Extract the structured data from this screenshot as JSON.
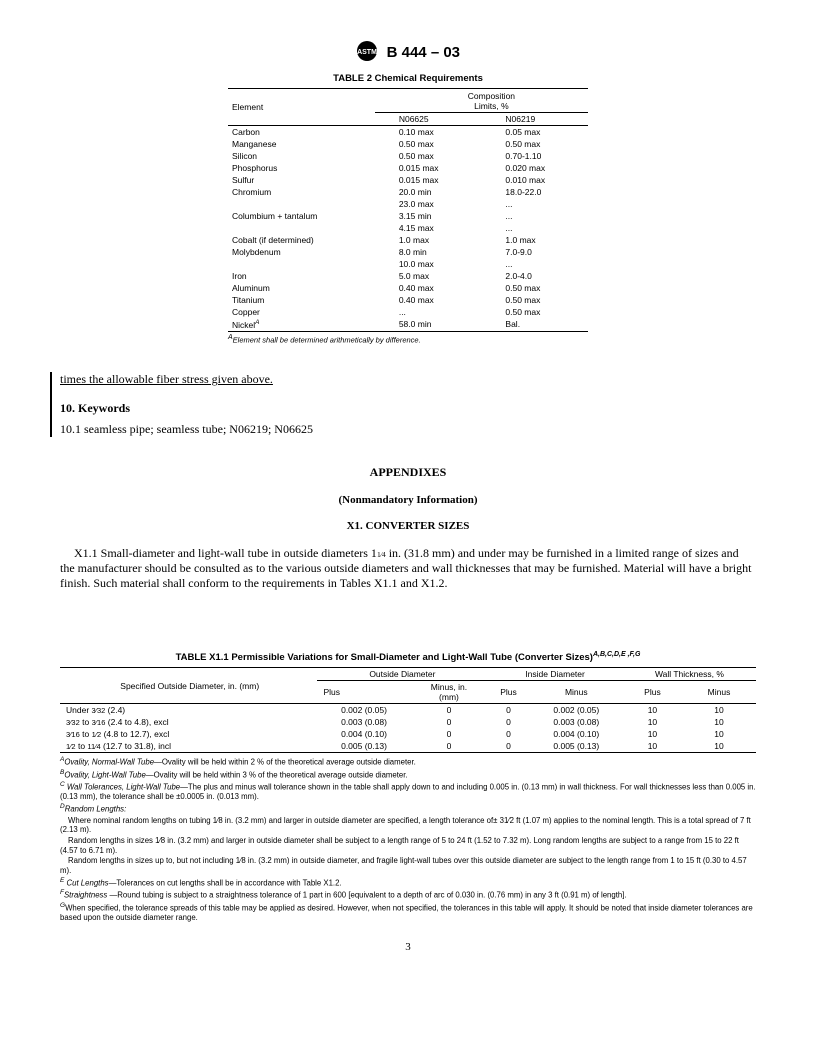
{
  "doc": {
    "designation": "B 444 – 03"
  },
  "table2": {
    "title": "TABLE 2  Chemical Requirements",
    "col_element": "Element",
    "col_comp": "Composition\nLimits, %",
    "sub1": "N06625",
    "sub2": "N06219",
    "rows": [
      {
        "el": "Carbon",
        "a": "0.10 max",
        "b": "0.05 max"
      },
      {
        "el": "Manganese",
        "a": "0.50 max",
        "b": "0.50 max"
      },
      {
        "el": "Silicon",
        "a": "0.50 max",
        "b": "0.70-1.10"
      },
      {
        "el": "Phosphorus",
        "a": "0.015 max",
        "b": "0.020 max"
      },
      {
        "el": "Sulfur",
        "a": "0.015 max",
        "b": "0.010 max"
      },
      {
        "el": "Chromium",
        "a": "20.0 min",
        "b": "18.0-22.0"
      },
      {
        "el": "",
        "a": "23.0 max",
        "b": "..."
      },
      {
        "el": "Columbium + tantalum",
        "a": "3.15 min",
        "b": "..."
      },
      {
        "el": "",
        "a": "4.15 max",
        "b": "..."
      },
      {
        "el": "Cobalt (if determined)",
        "a": "1.0 max",
        "b": "1.0 max"
      },
      {
        "el": "Molybdenum",
        "a": "8.0 min",
        "b": "7.0-9.0"
      },
      {
        "el": "",
        "a": "10.0 max",
        "b": "..."
      },
      {
        "el": "Iron",
        "a": "5.0 max",
        "b": "2.0-4.0"
      },
      {
        "el": "Aluminum",
        "a": "0.40 max",
        "b": "0.50 max"
      },
      {
        "el": "Titanium",
        "a": "0.40 max",
        "b": "0.50 max"
      },
      {
        "el": "Copper",
        "a": "...",
        "b": "0.50 max"
      },
      {
        "el": "Nickel",
        "a": "58.0 min",
        "b": "Bal."
      }
    ],
    "nickel_sup": "A",
    "footnote": "Element shall be determined arithmetically by difference.",
    "footnote_sup": "A"
  },
  "body": {
    "line1": "times the allowable fiber stress given above.",
    "kw_hdr": "10. Keywords",
    "kw_text": "10.1 seamless pipe; seamless tube; N06219; N06625"
  },
  "appendix": {
    "title": "APPENDIXES",
    "sub": "(Nonmandatory Information)",
    "x1_title": "X1. CONVERTER SIZES",
    "x1_para_a": "X1.1   Small-diameter and light-wall tube in outside diameters 1",
    "x1_para_b": " in. (31.8 mm) and under may be furnished in a limited range of sizes and the manufacturer should be consulted as to the various outside diameters and wall thicknesses that may be furnished. Material will have a bright finish. Such material shall conform to the requirements in Tables X1.1 and X1.2."
  },
  "tablex1": {
    "title_a": "TABLE X1.1  Permissible Variations for Small-Diameter and Light-Wall Tube (Converter Sizes)",
    "title_sup": "A,B,C,D,E ,F,G",
    "col_spec": "Specified Outside Diameter, in. (mm)",
    "col_od": "Outside Diameter",
    "col_id": "Inside Diameter",
    "col_wt": "Wall Thickness, %",
    "plus": "Plus",
    "minus": "Minus",
    "minus_in": "Minus, in.\n(mm)",
    "rows": [
      {
        "spec": "Under 3⁄32 (2.4)",
        "odp": "0.002 (0.05)",
        "odm": "0",
        "idp": "0",
        "idm": "0.002 (0.05)",
        "wtp": "10",
        "wtm": "10"
      },
      {
        "spec": "3⁄32 to 3⁄16 (2.4 to 4.8), excl",
        "odp": "0.003 (0.08)",
        "odm": "0",
        "idp": "0",
        "idm": "0.003 (0.08)",
        "wtp": "10",
        "wtm": "10"
      },
      {
        "spec": "3⁄16 to 1⁄2 (4.8 to 12.7), excl",
        "odp": "0.004 (0.10)",
        "odm": "0",
        "idp": "0",
        "idm": "0.004 (0.10)",
        "wtp": "10",
        "wtm": "10"
      },
      {
        "spec": "1⁄2 to 11⁄4 (12.7 to 31.8), incl",
        "odp": "0.005 (0.13)",
        "odm": "0",
        "idp": "0",
        "idm": "0.005 (0.13)",
        "wtp": "10",
        "wtm": "10"
      }
    ]
  },
  "notes": {
    "a_sup": "A",
    "a_ital": "Ovality, Normal-Wall Tube",
    "a_txt": "—Ovality will be held within 2 % of the theoretical average outside diameter.",
    "b_sup": "B",
    "b_ital": "Ovality, Light-Wall Tube",
    "b_txt": "—Ovality will be held within 3 % of the theoretical average outside diameter.",
    "c_sup": "C",
    "c_ital": " Wall Tolerances, Light-Wall Tube",
    "c_txt": "—The plus and minus wall tolerance shown in the table shall apply down to and including 0.005 in. (0.13 mm) in wall thickness. For wall thicknesses less than 0.005 in. (0.13 mm), the tolerance shall be ±0.0005 in. (0.013 mm).",
    "d_sup": "D",
    "d_ital": "Random Lengths:",
    "d_txt1": "Where nominal random lengths on tubing 1⁄8 in. (3.2 mm) and larger in outside diameter are specified, a length tolerance of± 31⁄2 ft (1.07 m) applies to the nominal length. This is a total spread of 7 ft (2.13 m).",
    "d_txt2": "Random lengths in sizes 1⁄8 in. (3.2 mm) and larger in outside diameter shall be subject to a length range of 5 to 24 ft (1.52 to 7.32 m). Long random lengths are subject to a range from 15 to 22 ft (4.57 to 6.71 m).",
    "d_txt3": "Random lengths in sizes up to, but not including 1⁄8 in. (3.2 mm) in outside diameter, and fragile light-wall tubes over this outside diameter are subject to the length range from 1 to 15 ft (0.30 to 4.57 m).",
    "e_sup": "E",
    "e_ital": " Cut Lengths",
    "e_txt": "—Tolerances on cut lengths shall be in accordance with Table X1.2.",
    "f_sup": "F",
    "f_ital": "Straightness ",
    "f_txt": "—Round tubing is subject to a straightness tolerance of 1 part in 600 [equivalent to a depth of arc of 0.030 in. (0.76 mm) in any 3 ft (0.91 m) of length].",
    "g_sup": "G",
    "g_txt": "When specified, the tolerance spreads of this table may be applied as desired. However, when not specified, the tolerances in this table will apply. It should be noted that inside diameter tolerances are based upon the outside diameter range."
  },
  "page_number": "3"
}
